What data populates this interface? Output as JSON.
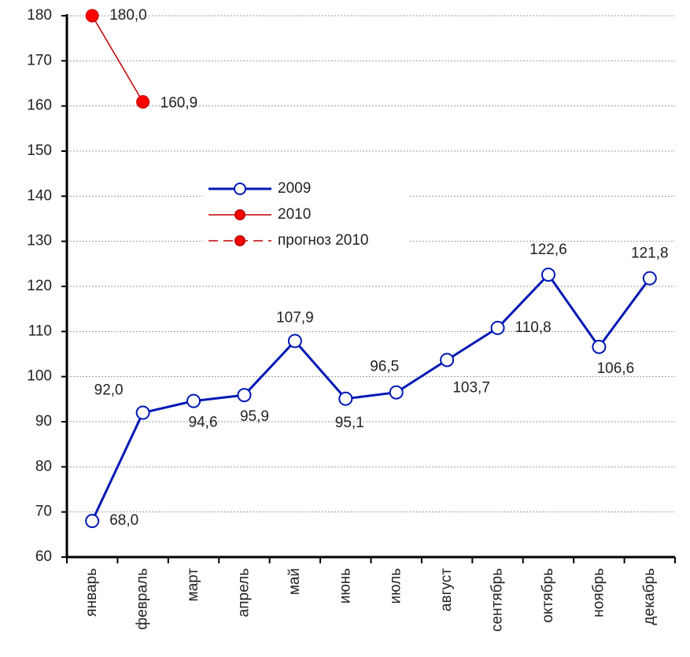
{
  "chart_data": {
    "type": "line",
    "categories": [
      "январь",
      "февраль",
      "март",
      "апрель",
      "май",
      "июнь",
      "июль",
      "август",
      "сентябрь",
      "октябрь",
      "ноябрь",
      "декабрь"
    ],
    "series": [
      {
        "name": "2009",
        "color": "#0018b4",
        "marker_fill": "#ffffff",
        "values": [
          68.0,
          92.0,
          94.6,
          95.9,
          107.9,
          95.1,
          96.5,
          103.7,
          110.8,
          122.6,
          106.6,
          121.8
        ],
        "value_labels": [
          "68,0",
          "92,0",
          "94,6",
          "95,9",
          "107,9",
          "95,1",
          "96,5",
          "103,7",
          "110,8",
          "122,6",
          "106,6",
          "121,8"
        ]
      },
      {
        "name": "2010",
        "color": "#c00000",
        "marker_fill": "#ff0000",
        "values": [
          180.0,
          160.9,
          null,
          null,
          null,
          null,
          null,
          null,
          null,
          null,
          null,
          null
        ],
        "value_labels": [
          "180,0",
          "160,9",
          null,
          null,
          null,
          null,
          null,
          null,
          null,
          null,
          null,
          null
        ]
      },
      {
        "name": "прогноз 2010",
        "color": "#c00000",
        "marker_fill": "#ff0000",
        "dashed": true,
        "values": [
          null,
          null,
          null,
          null,
          null,
          null,
          null,
          null,
          null,
          null,
          null,
          null
        ]
      }
    ],
    "ylim": [
      60,
      180
    ],
    "yticks": [
      60,
      70,
      80,
      90,
      100,
      110,
      120,
      130,
      140,
      150,
      160,
      170,
      180
    ],
    "grid": true
  }
}
